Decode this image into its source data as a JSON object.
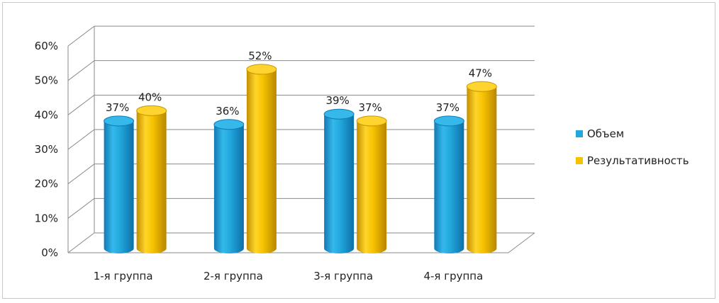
{
  "chart_data": {
    "type": "bar",
    "style": "3d-cylinder",
    "categories": [
      "1-я группа",
      "2-я группа",
      "3-я группа",
      "4-я группа"
    ],
    "series": [
      {
        "name": "Объем",
        "values": [
          37,
          36,
          39,
          37
        ],
        "labels": [
          "37%",
          "36%",
          "39%",
          "37%"
        ],
        "color": "#21a7dd"
      },
      {
        "name": "Результативность",
        "values": [
          40,
          52,
          37,
          47
        ],
        "labels": [
          "40%",
          "52%",
          "37%",
          "47%"
        ],
        "color": "#f6c200"
      }
    ],
    "y_ticks": [
      "0%",
      "10%",
      "20%",
      "30%",
      "40%",
      "50%",
      "60%"
    ],
    "ylim": [
      0,
      60
    ],
    "grid": true,
    "legend_position": "right"
  }
}
